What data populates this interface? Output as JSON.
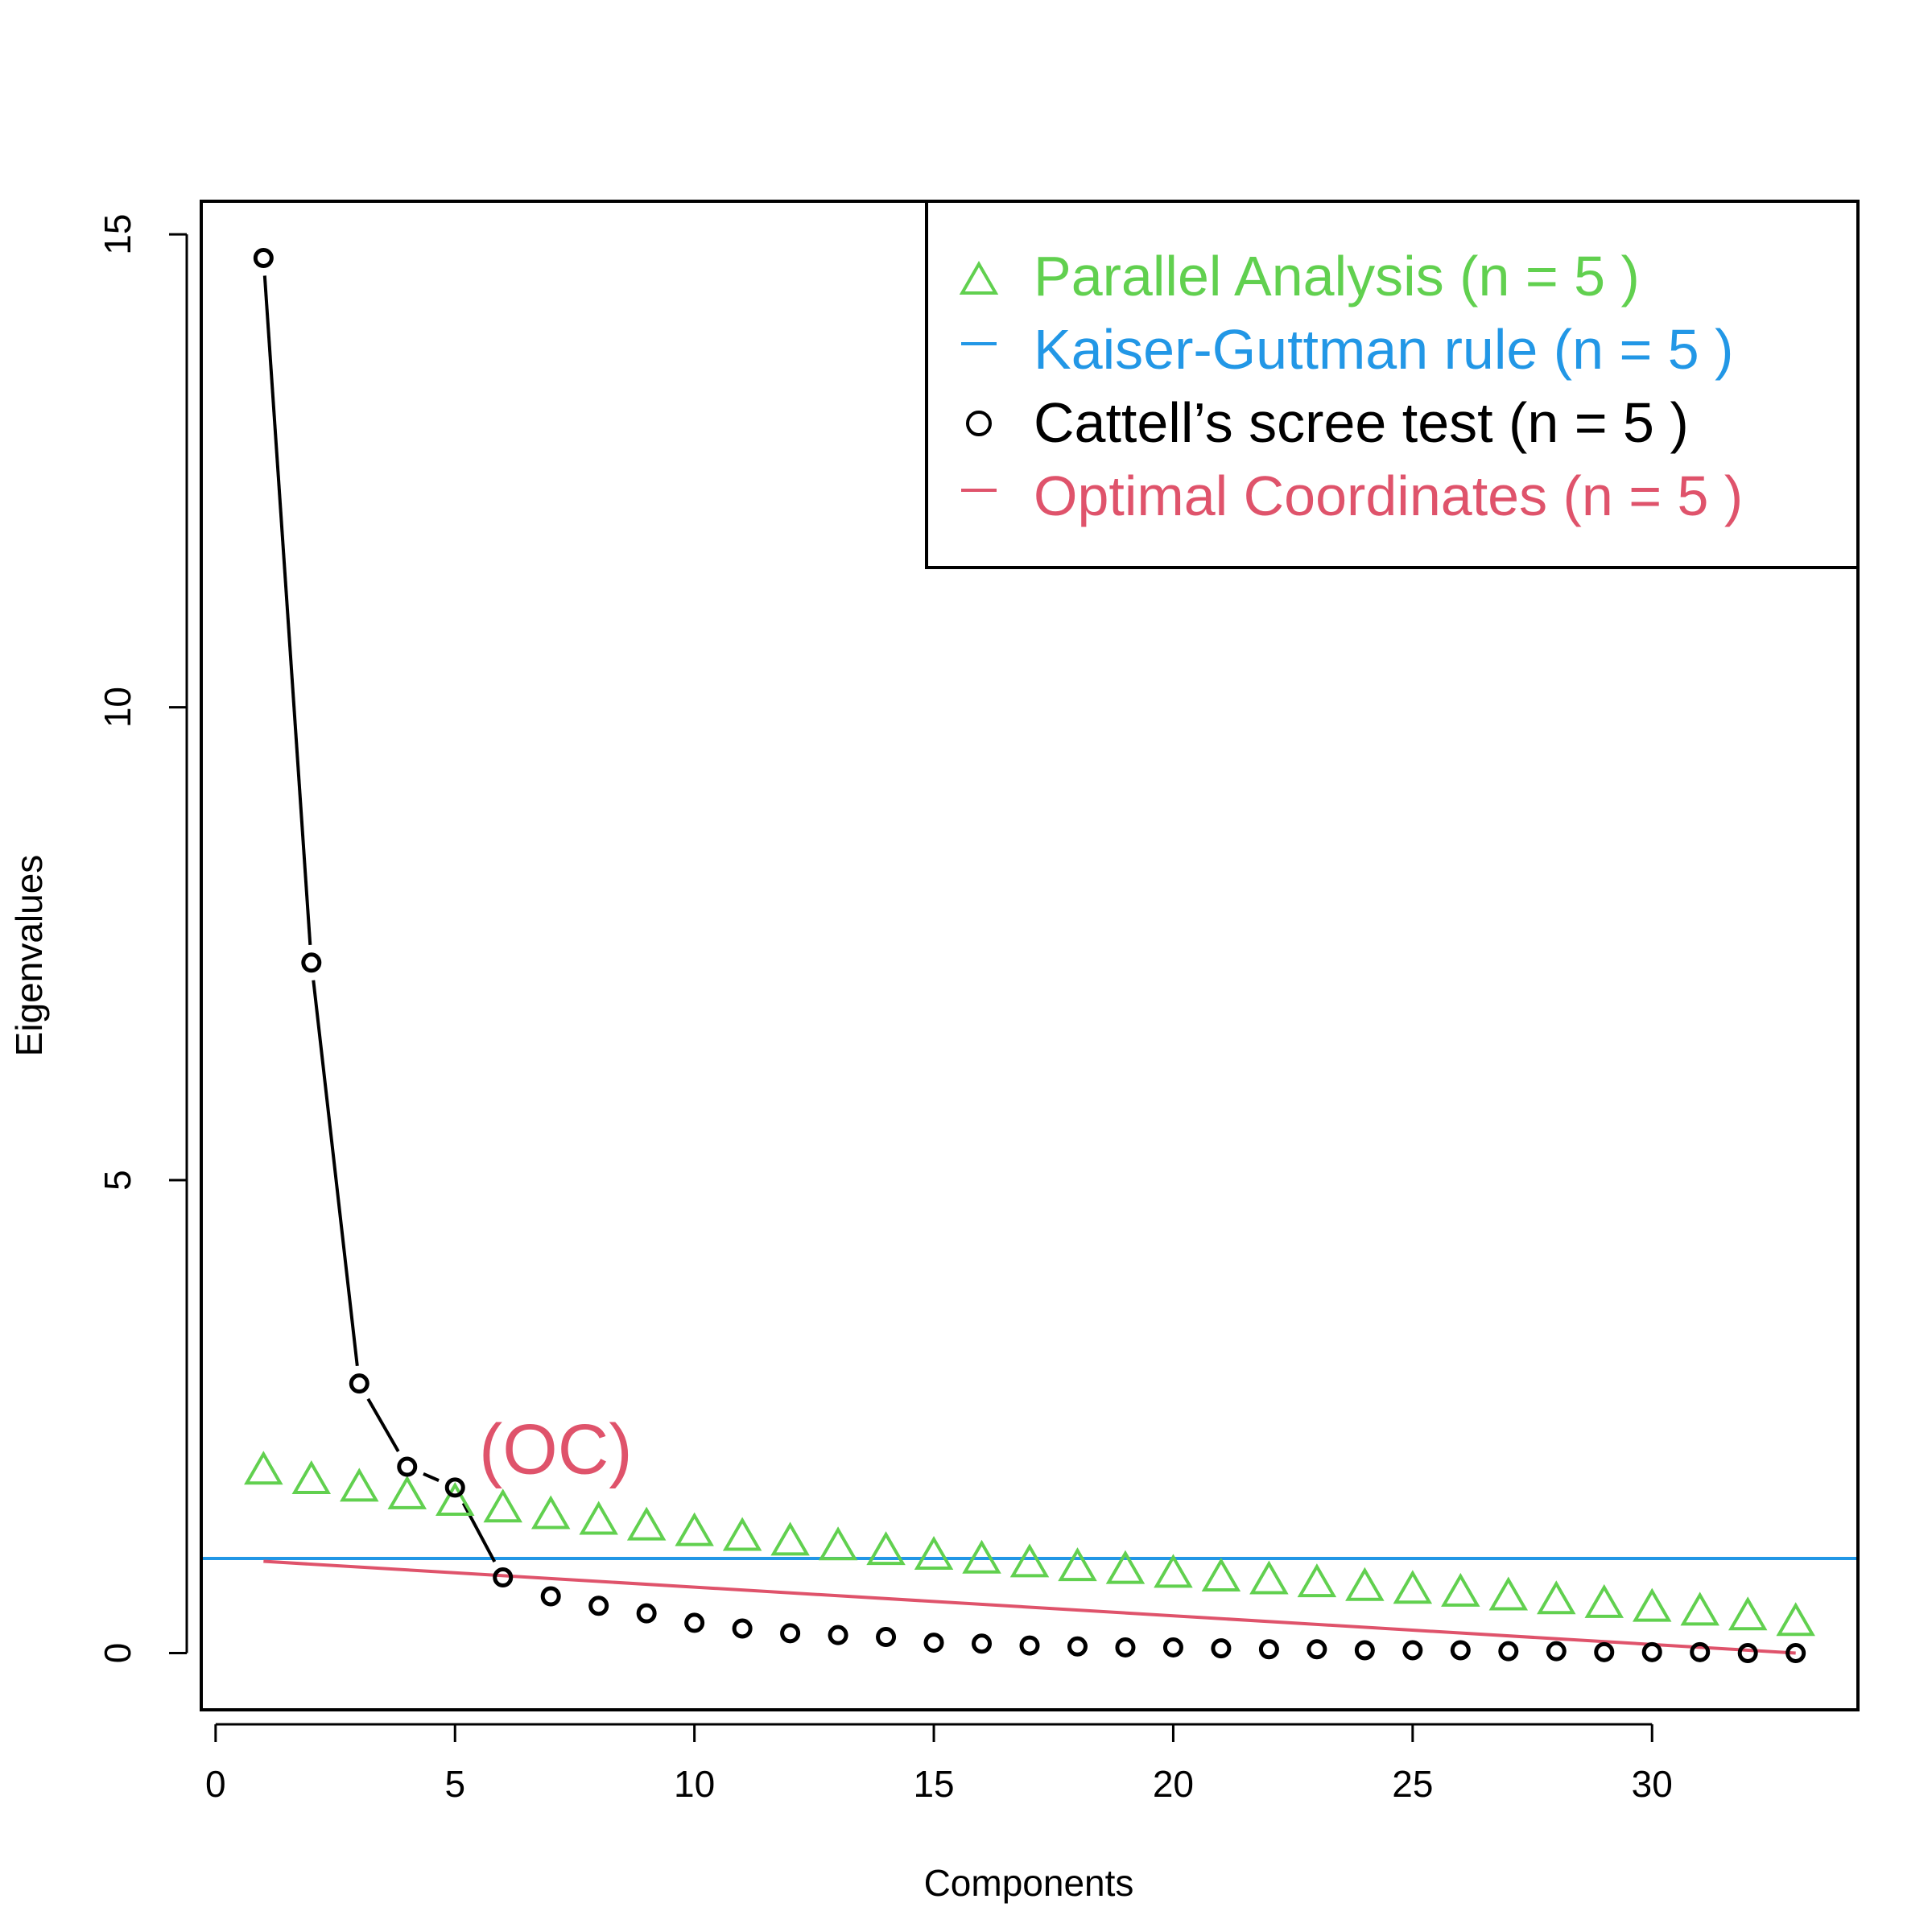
{
  "chart_data": {
    "type": "scatter",
    "xlabel": "Components",
    "ylabel": "Eigenvalues",
    "xlim": [
      -0.3,
      34.3
    ],
    "ylim": [
      -0.6,
      15.35
    ],
    "x_ticks": [
      0,
      5,
      10,
      15,
      20,
      25,
      30
    ],
    "y_ticks": [
      0,
      5,
      10,
      15
    ],
    "grid": false,
    "legend_position": "top-right",
    "annotation": "(OC)",
    "annotation_at": [
      5.5,
      1.9
    ],
    "components": [
      1,
      2,
      3,
      4,
      5,
      6,
      7,
      8,
      9,
      10,
      11,
      12,
      13,
      14,
      15,
      16,
      17,
      18,
      19,
      20,
      21,
      22,
      23,
      24,
      25,
      26,
      27,
      28,
      29,
      30,
      31,
      32,
      33
    ],
    "series": [
      {
        "name": "Parallel Analysis",
        "legend_label": "Parallel Analysis (n =  5 )",
        "marker": "triangle",
        "color": "#61D04F",
        "values": [
          1.9,
          1.8,
          1.72,
          1.64,
          1.57,
          1.5,
          1.43,
          1.37,
          1.31,
          1.25,
          1.2,
          1.15,
          1.1,
          1.05,
          1.0,
          0.96,
          0.92,
          0.88,
          0.85,
          0.81,
          0.77,
          0.74,
          0.71,
          0.67,
          0.64,
          0.61,
          0.57,
          0.53,
          0.49,
          0.45,
          0.41,
          0.36,
          0.3
        ]
      },
      {
        "name": "Kaiser-Guttman rule",
        "legend_label": "Kaiser-Guttman rule (n =  5 )",
        "marker": "hline",
        "color": "#2297E6",
        "value": 1.0
      },
      {
        "name": "Cattell's scree test",
        "legend_label": "Cattell’s scree test (n =  5 )",
        "marker": "circle",
        "color": "#000000",
        "values": [
          14.75,
          7.3,
          2.85,
          1.97,
          1.75,
          0.8,
          0.6,
          0.5,
          0.42,
          0.32,
          0.26,
          0.21,
          0.19,
          0.17,
          0.11,
          0.1,
          0.08,
          0.07,
          0.06,
          0.06,
          0.05,
          0.04,
          0.04,
          0.03,
          0.03,
          0.03,
          0.02,
          0.02,
          0.01,
          0.01,
          0.01,
          0.0,
          0.0
        ]
      },
      {
        "name": "Optimal Coordinates",
        "legend_label": "Optimal Coordinates (n =  5 )",
        "marker": "line",
        "color": "#DF536B",
        "from": [
          1,
          0.97
        ],
        "to": [
          33,
          0.0
        ]
      }
    ]
  }
}
